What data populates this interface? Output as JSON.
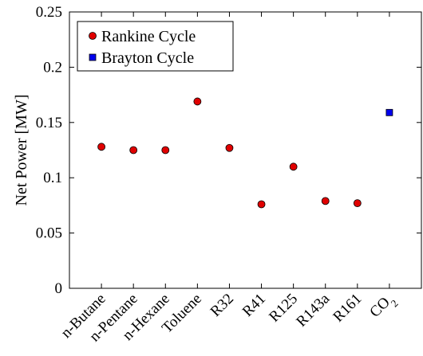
{
  "chart_data": {
    "type": "scatter",
    "title": "",
    "xlabel": "",
    "ylabel": "Net Power [MW]",
    "ylim": [
      0,
      0.25
    ],
    "yticks": [
      "0",
      "0.05",
      "0.1",
      "0.15",
      "0.2",
      "0.25"
    ],
    "grid": false,
    "legend_position": "top-left",
    "categories": [
      "n-Butane",
      "n-Pentane",
      "n-Hexane",
      "Toluene",
      "R32",
      "R41",
      "R125",
      "R143a",
      "R161",
      "CO2"
    ],
    "series": [
      {
        "name": "Rankine Cycle",
        "marker": "circle",
        "color": "#e00000",
        "points": [
          {
            "x": "n-Butane",
            "y": 0.128
          },
          {
            "x": "n-Pentane",
            "y": 0.125
          },
          {
            "x": "n-Hexane",
            "y": 0.125
          },
          {
            "x": "Toluene",
            "y": 0.169
          },
          {
            "x": "R32",
            "y": 0.127
          },
          {
            "x": "R41",
            "y": 0.076
          },
          {
            "x": "R125",
            "y": 0.11
          },
          {
            "x": "R143a",
            "y": 0.079
          },
          {
            "x": "R161",
            "y": 0.077
          }
        ]
      },
      {
        "name": "Brayton Cycle",
        "marker": "square",
        "color": "#0000ee",
        "points": [
          {
            "x": "CO2",
            "y": 0.159
          }
        ]
      }
    ]
  }
}
